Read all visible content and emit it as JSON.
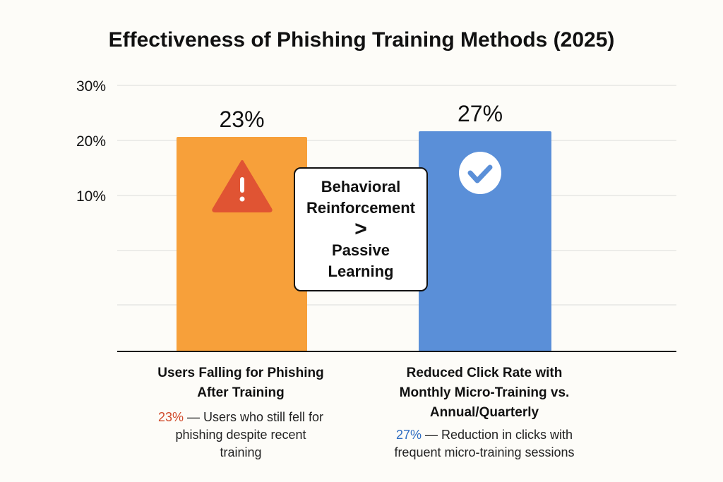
{
  "colors": {
    "orange": "#f7a03a",
    "blue": "#5a8fd8",
    "warning_red": "#e05433",
    "accent_red": "#d04a2b",
    "accent_blue": "#2f6dc2"
  },
  "chart_data": {
    "type": "bar",
    "title": "Effectiveness of Phishing Training Methods (2025)",
    "ylim": [
      0,
      30
    ],
    "yticks": [
      "30%",
      "20%",
      "10%"
    ],
    "grid": true,
    "categories": [
      "Users Falling for Phishing After Training",
      "Reduced Click Rate with Monthly Micro-Training vs. Annual/Quarterly"
    ],
    "values": [
      23,
      27
    ],
    "value_labels": [
      "23%",
      "27%"
    ],
    "bar_icons": [
      "warning-icon",
      "check-circle-icon"
    ],
    "callout": {
      "line1": "Behavioral",
      "line2": "Reinforcement",
      "symbol": ">",
      "line3": "Passive",
      "line4": "Learning"
    }
  },
  "labels": {
    "left_cat_line1": "Users Falling for Phishing",
    "left_cat_line2": "After Training",
    "left_desc_pct": "23%",
    "left_desc_line1": " — Users who still fell for",
    "left_desc_line2": "phishing despite recent",
    "left_desc_line3": "training",
    "right_cat_line1": "Reduced Click Rate with",
    "right_cat_line2": "Monthly Micro-Training vs.",
    "right_cat_line3": "Annual/Quarterly",
    "right_desc_pct": "27%",
    "right_desc_line1": " — Reduction in clicks with",
    "right_desc_line2": "frequent micro-training sessions"
  }
}
